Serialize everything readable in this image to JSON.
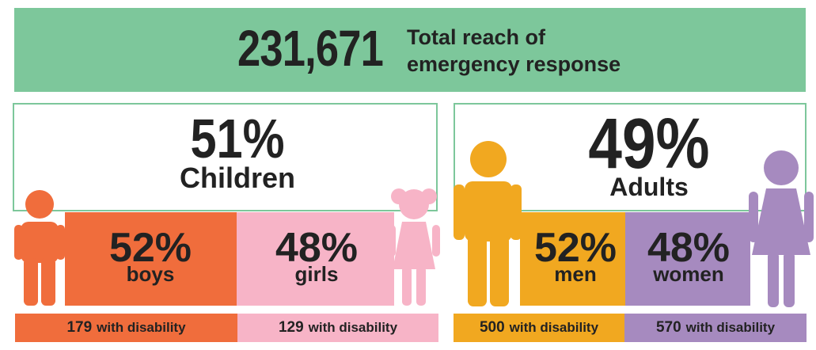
{
  "header": {
    "total_number": "231,671",
    "total_text": "Total reach of emergency response"
  },
  "children": {
    "percent": "51%",
    "label": "Children",
    "boys": {
      "percent": "52%",
      "label": "boys",
      "disability_count": "179",
      "disability_text": "with disability"
    },
    "girls": {
      "percent": "48%",
      "label": "girls",
      "disability_count": "129",
      "disability_text": "with disability"
    }
  },
  "adults": {
    "percent": "49%",
    "label": "Adults",
    "men": {
      "percent": "52%",
      "label": "men",
      "disability_count": "500",
      "disability_text": "with disability"
    },
    "women": {
      "percent": "48%",
      "label": "women",
      "disability_count": "570",
      "disability_text": "with disability"
    }
  },
  "colors": {
    "banner": "#7dc79b",
    "boys": "#f06d3c",
    "girls": "#f7b4c7",
    "men": "#f1a820",
    "women": "#a68abf"
  },
  "icons": [
    "boy-figure-icon",
    "girl-figure-icon",
    "man-figure-icon",
    "woman-figure-icon"
  ]
}
